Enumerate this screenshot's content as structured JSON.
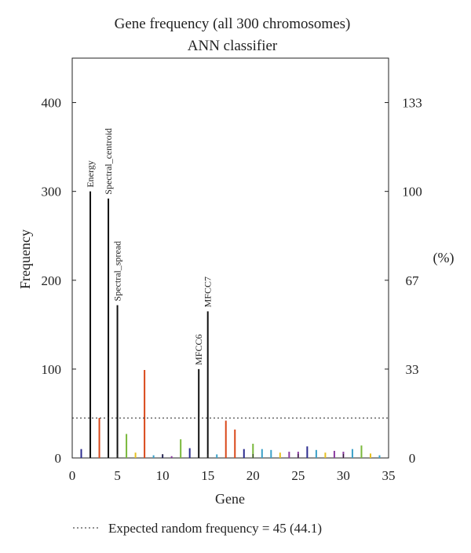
{
  "chart_data": {
    "type": "bar",
    "title": "Gene frequency (all 300 chromosomes)",
    "subtitle": "ANN classifier",
    "xlabel": "Gene",
    "ylabel": "Frequency",
    "y2label": "(%)",
    "xlim": [
      0,
      35
    ],
    "ylim": [
      0,
      450
    ],
    "xticks": [
      0,
      5,
      10,
      15,
      20,
      25,
      30,
      35
    ],
    "yticks": [
      0,
      100,
      200,
      300,
      400
    ],
    "y2ticks": [
      {
        "value": 0,
        "label": "0"
      },
      {
        "value": 100,
        "label": "33"
      },
      {
        "value": 200,
        "label": "67"
      },
      {
        "value": 300,
        "label": "100"
      },
      {
        "value": 400,
        "label": "133"
      }
    ],
    "genes": [
      {
        "gene": 1,
        "value": 10,
        "color": "#2b2b8f"
      },
      {
        "gene": 2,
        "value": 300,
        "color": "#111111",
        "label": "Energy"
      },
      {
        "gene": 3,
        "value": 45,
        "color": "#d9481a"
      },
      {
        "gene": 4,
        "value": 292,
        "color": "#111111",
        "label": "Spectral_centroid"
      },
      {
        "gene": 5,
        "value": 172,
        "color": "#111111",
        "label": "Spectral_spread"
      },
      {
        "gene": 6,
        "value": 27,
        "color": "#79b83a"
      },
      {
        "gene": 7,
        "value": 6,
        "color": "#e6c020"
      },
      {
        "gene": 8,
        "value": 99,
        "color": "#d9481a"
      },
      {
        "gene": 9,
        "value": 3,
        "color": "#3aa0c8"
      },
      {
        "gene": 10,
        "value": 4,
        "color": "#2b2b8f"
      },
      {
        "gene": 11,
        "value": 2,
        "color": "#8a3aa0"
      },
      {
        "gene": 12,
        "value": 21,
        "color": "#79b83a"
      },
      {
        "gene": 13,
        "value": 11,
        "color": "#2b2b8f"
      },
      {
        "gene": 14,
        "value": 100,
        "color": "#111111",
        "label": "MFCC6"
      },
      {
        "gene": 15,
        "value": 165,
        "color": "#111111",
        "label": "MFCC7"
      },
      {
        "gene": 16,
        "value": 4,
        "color": "#3aa0c8"
      },
      {
        "gene": 17,
        "value": 42,
        "color": "#d9481a"
      },
      {
        "gene": 18,
        "value": 32,
        "color": "#d9481a"
      },
      {
        "gene": 19,
        "value": 10,
        "color": "#2b2b8f"
      },
      {
        "gene": 20,
        "value": 16,
        "color": "#79b83a"
      },
      {
        "gene": 21,
        "value": 10,
        "color": "#3aa0c8"
      },
      {
        "gene": 22,
        "value": 9,
        "color": "#3aa0c8"
      },
      {
        "gene": 23,
        "value": 6,
        "color": "#e6c020"
      },
      {
        "gene": 24,
        "value": 7,
        "color": "#8a3aa0"
      },
      {
        "gene": 25,
        "value": 7,
        "color": "#8a3aa0"
      },
      {
        "gene": 26,
        "value": 13,
        "color": "#2b2b8f"
      },
      {
        "gene": 27,
        "value": 9,
        "color": "#3aa0c8"
      },
      {
        "gene": 28,
        "value": 6,
        "color": "#e6c020"
      },
      {
        "gene": 29,
        "value": 8,
        "color": "#8a3aa0"
      },
      {
        "gene": 30,
        "value": 7,
        "color": "#8a3aa0"
      },
      {
        "gene": 31,
        "value": 10,
        "color": "#3aa0c8"
      },
      {
        "gene": 32,
        "value": 14,
        "color": "#79b83a"
      },
      {
        "gene": 33,
        "value": 5,
        "color": "#e6c020"
      },
      {
        "gene": 34,
        "value": 3,
        "color": "#3aa0c8"
      }
    ],
    "reference_line": {
      "value": 45,
      "style": "dotted"
    },
    "legend": {
      "text": "Expected random frequency = 45 (44.1)",
      "placement": "bottom"
    },
    "grid": false
  }
}
